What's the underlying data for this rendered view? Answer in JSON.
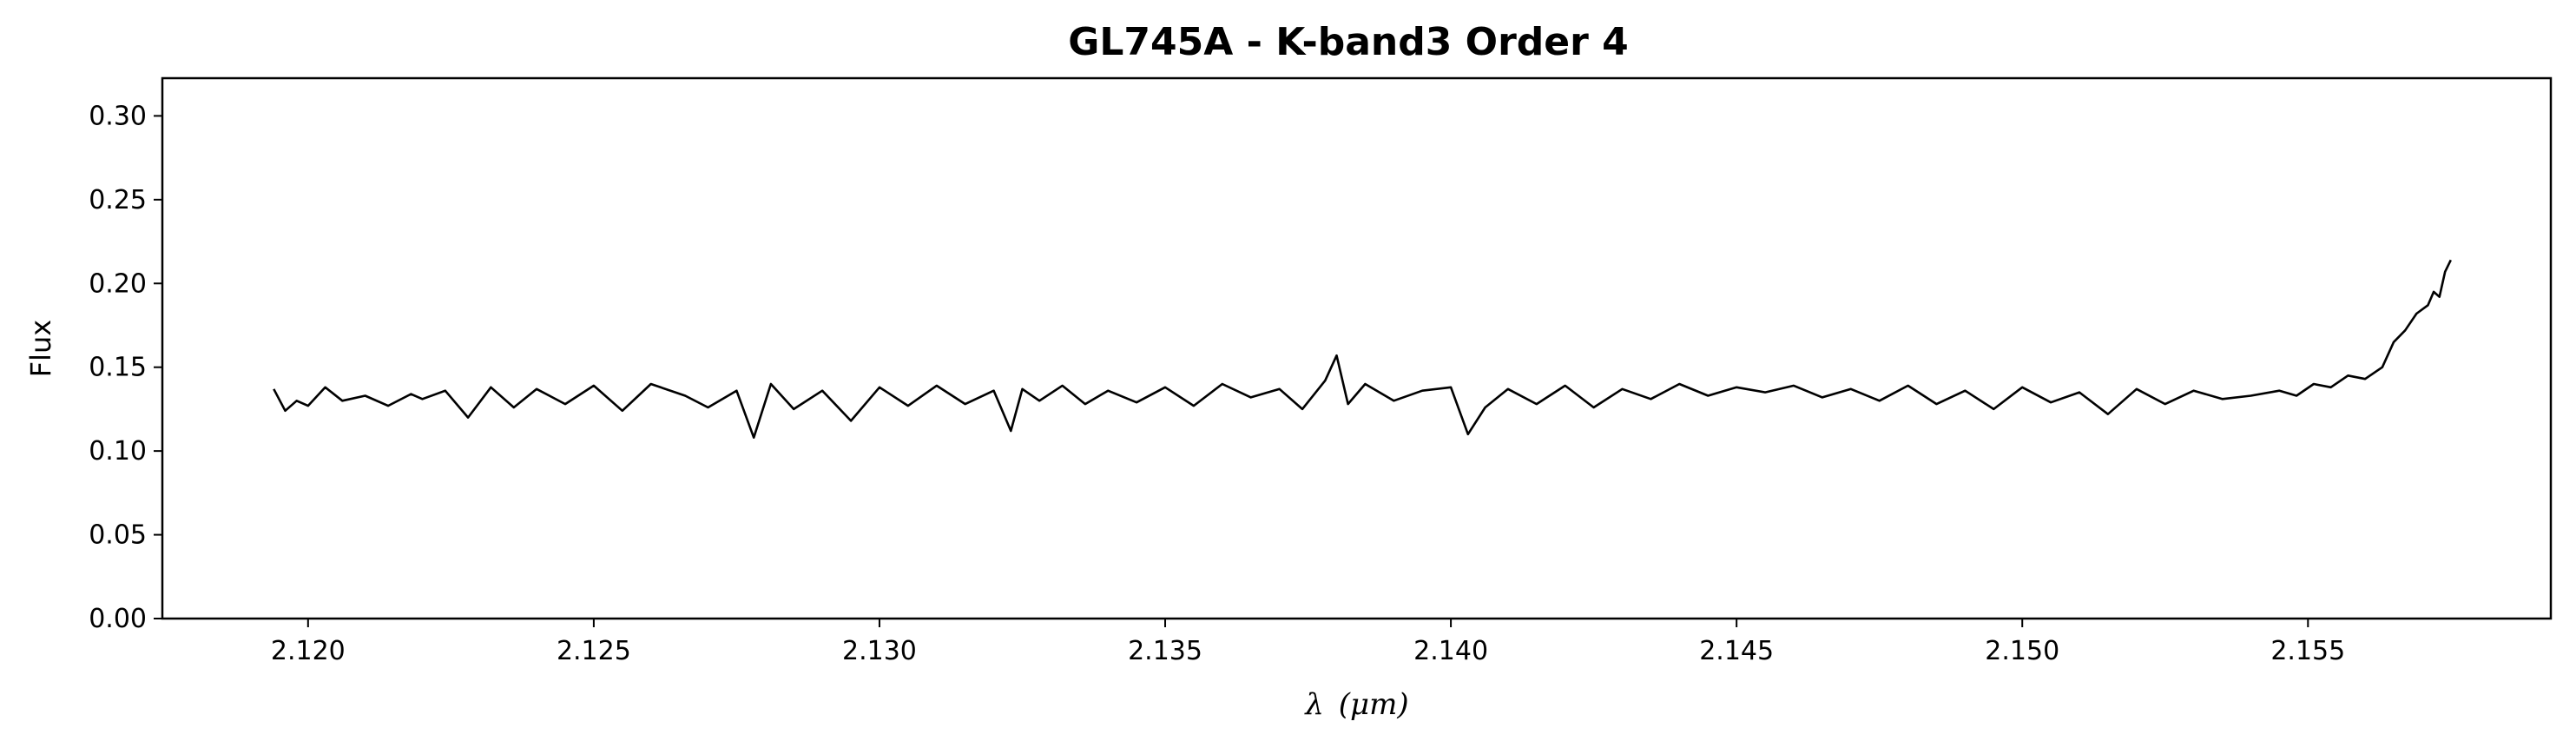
{
  "chart_data": {
    "type": "line",
    "title": "GL745A - K-band3 Order 4",
    "xlabel_symbol": "λ",
    "xlabel_unit": "(μm)",
    "ylabel": "Flux",
    "xlim": [
      2.11745,
      2.15925
    ],
    "ylim": [
      0.0,
      0.3225
    ],
    "xticks": [
      2.12,
      2.125,
      2.13,
      2.135,
      2.14,
      2.145,
      2.15,
      2.155
    ],
    "xtick_labels": [
      "2.120",
      "2.125",
      "2.130",
      "2.135",
      "2.140",
      "2.145",
      "2.150",
      "2.155"
    ],
    "yticks": [
      0.0,
      0.05,
      0.1,
      0.15,
      0.2,
      0.25,
      0.3
    ],
    "ytick_labels": [
      "0.00",
      "0.05",
      "0.10",
      "0.15",
      "0.20",
      "0.25",
      "0.30"
    ],
    "grid": false,
    "line_color": "#000000",
    "series": [
      {
        "x": [
          2.1194,
          2.1196,
          2.1198,
          2.12,
          2.1203,
          2.1206,
          2.121,
          2.1214,
          2.1218,
          2.122,
          2.1224,
          2.1228,
          2.1232,
          2.1236,
          2.124,
          2.1245,
          2.125,
          2.1255,
          2.126,
          2.1266,
          2.127,
          2.1275,
          2.1278,
          2.1281,
          2.1285,
          2.129,
          2.1295,
          2.13,
          2.1305,
          2.131,
          2.1315,
          2.132,
          2.1323,
          2.1325,
          2.1328,
          2.1332,
          2.1336,
          2.134,
          2.1345,
          2.135,
          2.1355,
          2.136,
          2.1365,
          2.137,
          2.1374,
          2.1378,
          2.138,
          2.1382,
          2.1385,
          2.139,
          2.1395,
          2.14,
          2.1403,
          2.1406,
          2.141,
          2.1415,
          2.142,
          2.1425,
          2.143,
          2.1435,
          2.144,
          2.1445,
          2.145,
          2.1455,
          2.146,
          2.1465,
          2.147,
          2.1475,
          2.148,
          2.1485,
          2.149,
          2.1495,
          2.15,
          2.1505,
          2.151,
          2.1515,
          2.152,
          2.1525,
          2.153,
          2.1535,
          2.154,
          2.1545,
          2.1548,
          2.1551,
          2.1554,
          2.1557,
          2.156,
          2.1563,
          2.1565,
          2.1567,
          2.1569,
          2.1571,
          2.1572,
          2.1573,
          2.1574,
          2.1575
        ],
        "y": [
          0.137,
          0.124,
          0.13,
          0.127,
          0.138,
          0.13,
          0.133,
          0.127,
          0.134,
          0.131,
          0.136,
          0.12,
          0.138,
          0.126,
          0.137,
          0.128,
          0.139,
          0.124,
          0.14,
          0.133,
          0.126,
          0.136,
          0.108,
          0.14,
          0.125,
          0.136,
          0.118,
          0.138,
          0.127,
          0.139,
          0.128,
          0.136,
          0.112,
          0.137,
          0.13,
          0.139,
          0.128,
          0.136,
          0.129,
          0.138,
          0.127,
          0.14,
          0.132,
          0.137,
          0.125,
          0.142,
          0.157,
          0.128,
          0.14,
          0.13,
          0.136,
          0.138,
          0.11,
          0.126,
          0.137,
          0.128,
          0.139,
          0.126,
          0.137,
          0.131,
          0.14,
          0.133,
          0.138,
          0.135,
          0.139,
          0.132,
          0.137,
          0.13,
          0.139,
          0.128,
          0.136,
          0.125,
          0.138,
          0.129,
          0.135,
          0.122,
          0.137,
          0.128,
          0.136,
          0.131,
          0.133,
          0.136,
          0.133,
          0.14,
          0.138,
          0.145,
          0.143,
          0.15,
          0.165,
          0.172,
          0.182,
          0.187,
          0.195,
          0.192,
          0.207,
          0.214
        ]
      }
    ]
  }
}
